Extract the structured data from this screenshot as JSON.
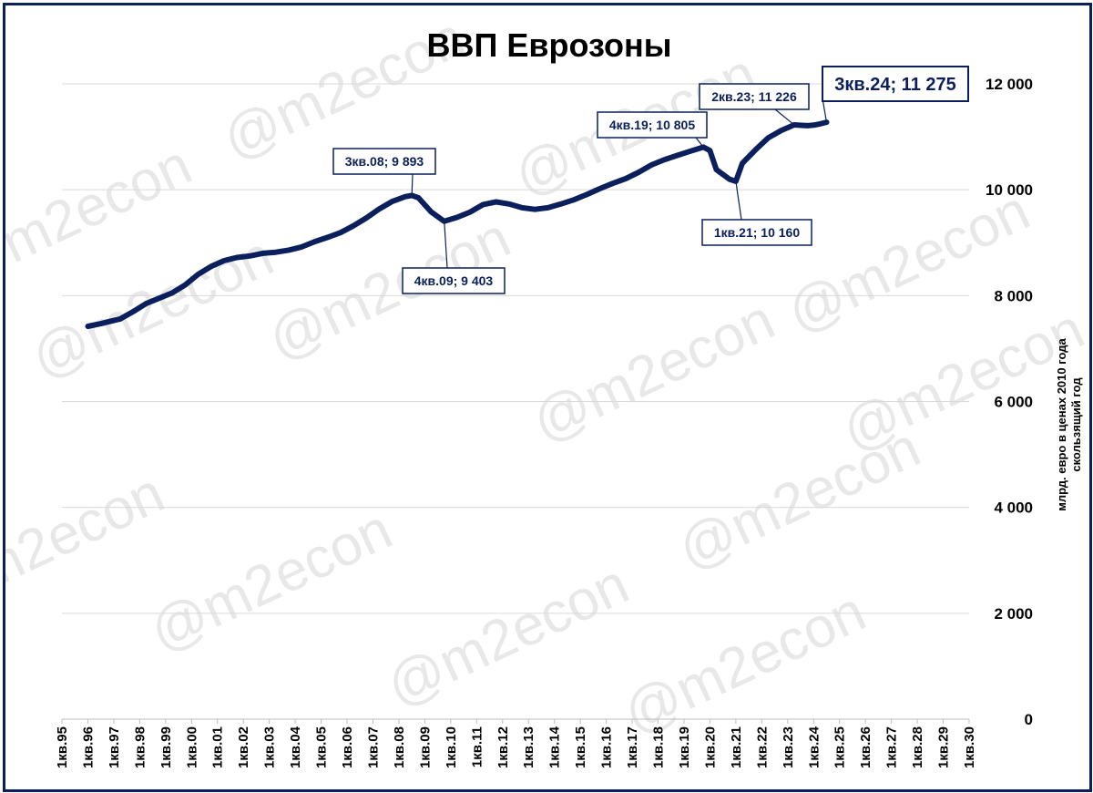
{
  "chart_data": {
    "type": "line",
    "title": "ВВП Еврозоны",
    "ylabel_line1": "млрд. евро в ценах 2010 года",
    "ylabel_line2": "скользящий год",
    "ylim": [
      0,
      12000
    ],
    "yticks": [
      {
        "value": 0,
        "label": "0"
      },
      {
        "value": 2000,
        "label": "2 000"
      },
      {
        "value": 4000,
        "label": "4 000"
      },
      {
        "value": 6000,
        "label": "6 000"
      },
      {
        "value": 8000,
        "label": "8 000"
      },
      {
        "value": 10000,
        "label": "10 000"
      },
      {
        "value": 12000,
        "label": "12 000"
      }
    ],
    "xticks": [
      "1кв.95",
      "1кв.96",
      "1кв.97",
      "1кв.98",
      "1кв.99",
      "1кв.00",
      "1кв.01",
      "1кв.02",
      "1кв.03",
      "1кв.04",
      "1кв.05",
      "1кв.06",
      "1кв.07",
      "1кв.08",
      "1кв.09",
      "1кв.10",
      "1кв.11",
      "1кв.12",
      "1кв.13",
      "1кв.14",
      "1кв.15",
      "1кв.16",
      "1кв.17",
      "1кв.18",
      "1кв.19",
      "1кв.20",
      "1кв.21",
      "1кв.22",
      "1кв.23",
      "1кв.24",
      "1кв.25",
      "1кв.26",
      "1кв.27",
      "1кв.28",
      "1кв.29",
      "1кв.30"
    ],
    "grid": true,
    "series": [
      {
        "color": "#0b1f5c",
        "points": [
          [
            1996.0,
            7420
          ],
          [
            1996.5,
            7470
          ],
          [
            1997.0,
            7530
          ],
          [
            1997.25,
            7560
          ],
          [
            1997.75,
            7700
          ],
          [
            1998.25,
            7850
          ],
          [
            1998.75,
            7950
          ],
          [
            1999.25,
            8050
          ],
          [
            1999.75,
            8200
          ],
          [
            2000.25,
            8400
          ],
          [
            2000.75,
            8550
          ],
          [
            2001.25,
            8660
          ],
          [
            2001.75,
            8720
          ],
          [
            2002.25,
            8750
          ],
          [
            2002.75,
            8800
          ],
          [
            2003.25,
            8820
          ],
          [
            2003.75,
            8860
          ],
          [
            2004.25,
            8920
          ],
          [
            2004.75,
            9020
          ],
          [
            2005.25,
            9100
          ],
          [
            2005.75,
            9190
          ],
          [
            2006.25,
            9320
          ],
          [
            2006.75,
            9470
          ],
          [
            2007.25,
            9640
          ],
          [
            2007.75,
            9780
          ],
          [
            2008.25,
            9870
          ],
          [
            2008.5,
            9893
          ],
          [
            2008.75,
            9850
          ],
          [
            2009.25,
            9580
          ],
          [
            2009.75,
            9403
          ],
          [
            2010.25,
            9480
          ],
          [
            2010.75,
            9580
          ],
          [
            2011.25,
            9720
          ],
          [
            2011.75,
            9770
          ],
          [
            2012.25,
            9730
          ],
          [
            2012.75,
            9660
          ],
          [
            2013.25,
            9630
          ],
          [
            2013.75,
            9660
          ],
          [
            2014.25,
            9730
          ],
          [
            2014.75,
            9810
          ],
          [
            2015.25,
            9910
          ],
          [
            2015.75,
            10020
          ],
          [
            2016.25,
            10120
          ],
          [
            2016.75,
            10210
          ],
          [
            2017.25,
            10330
          ],
          [
            2017.75,
            10470
          ],
          [
            2018.25,
            10570
          ],
          [
            2018.75,
            10650
          ],
          [
            2019.25,
            10730
          ],
          [
            2019.75,
            10805
          ],
          [
            2020.0,
            10740
          ],
          [
            2020.25,
            10380
          ],
          [
            2020.75,
            10200
          ],
          [
            2021.0,
            10160
          ],
          [
            2021.25,
            10500
          ],
          [
            2021.75,
            10750
          ],
          [
            2022.25,
            10980
          ],
          [
            2022.75,
            11120
          ],
          [
            2023.25,
            11226
          ],
          [
            2023.75,
            11210
          ],
          [
            2024.0,
            11220
          ],
          [
            2024.25,
            11245
          ],
          [
            2024.5,
            11275
          ]
        ]
      }
    ],
    "annotations": [
      {
        "text": "3кв.08; 9 893",
        "x": 2008.5,
        "y": 9893,
        "emphasis": false
      },
      {
        "text": "4кв.09; 9 403",
        "x": 2009.75,
        "y": 9403,
        "emphasis": false
      },
      {
        "text": "4кв.19; 10 805",
        "x": 2019.75,
        "y": 10805,
        "emphasis": false
      },
      {
        "text": "1кв.21; 10 160",
        "x": 2021.0,
        "y": 10160,
        "emphasis": false
      },
      {
        "text": "2кв.23; 11 226",
        "x": 2023.25,
        "y": 11226,
        "emphasis": false
      },
      {
        "text": "3кв.24; 11 275",
        "x": 2024.5,
        "y": 11275,
        "emphasis": true
      }
    ],
    "watermark": "@m2econ"
  }
}
